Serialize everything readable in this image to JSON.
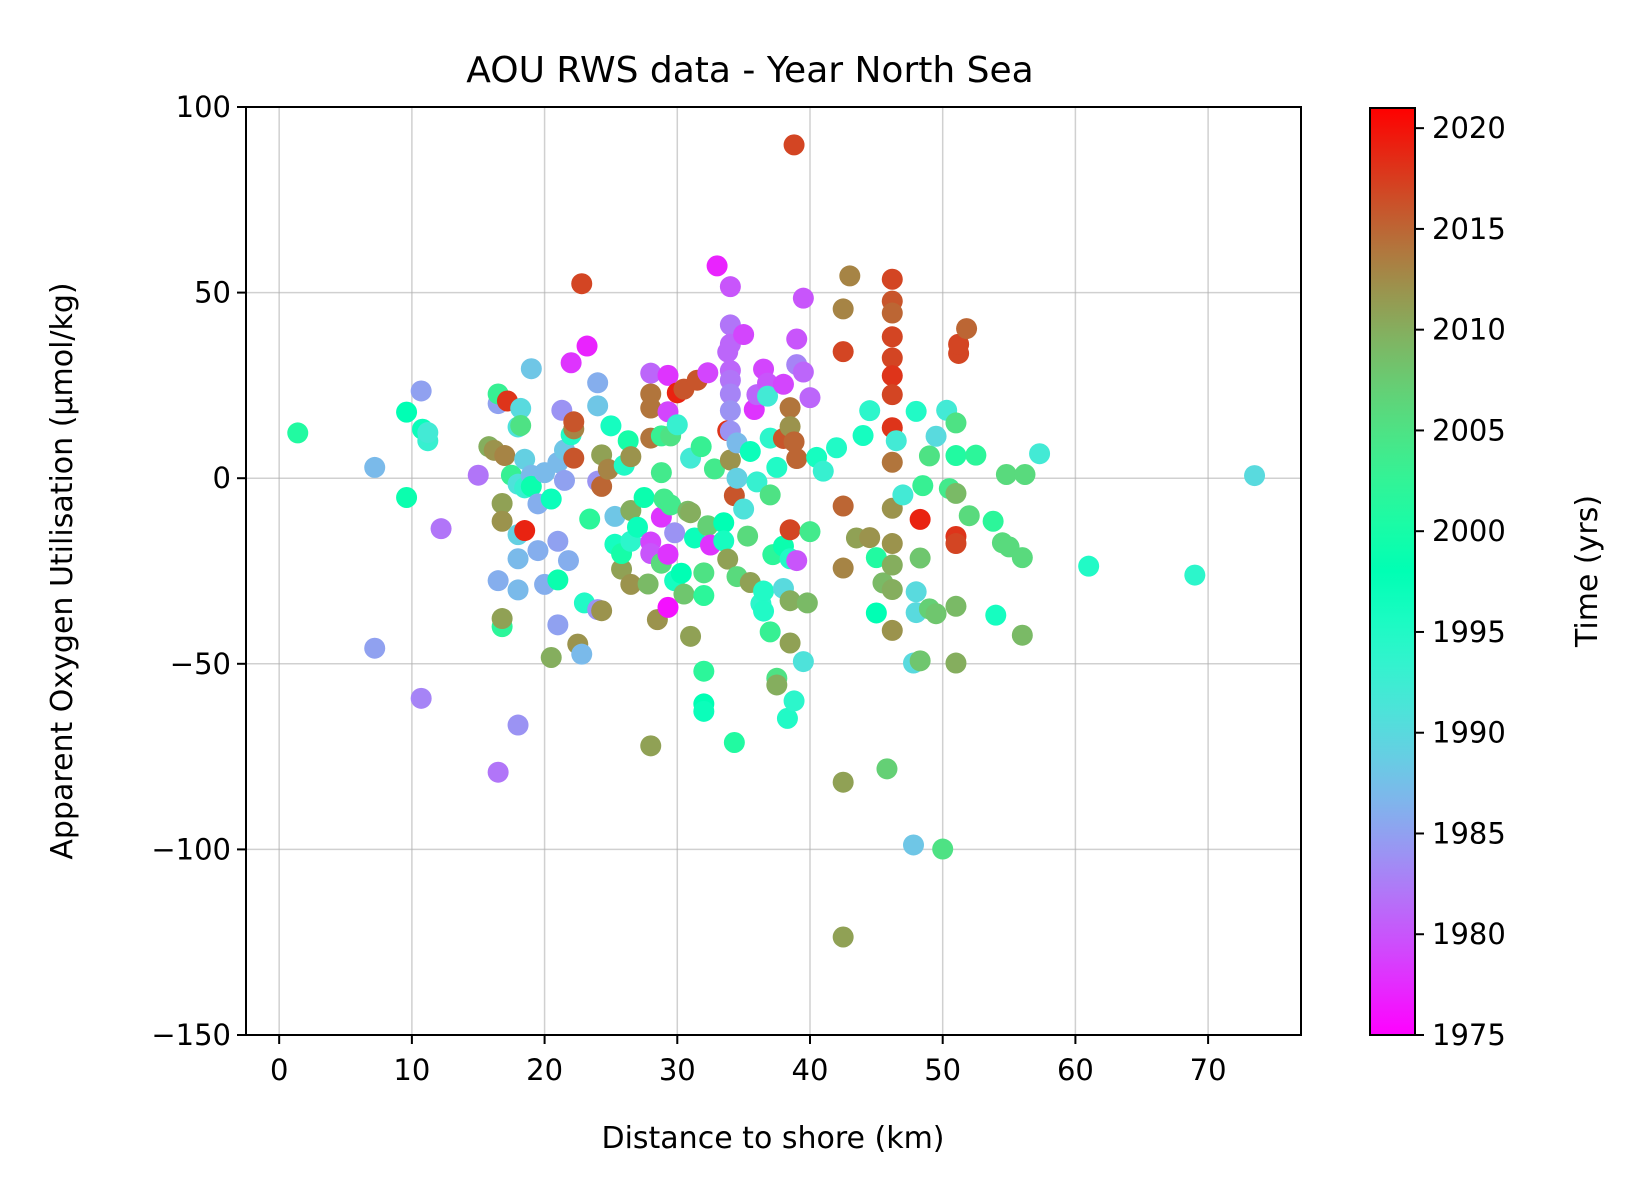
{
  "chart_data": {
    "type": "scatter",
    "title": "AOU RWS data - Year North Sea",
    "xlabel": "Distance to shore (km)",
    "ylabel": "Apparent Oxygen Utilisation (µmol/kg)",
    "xlim": [
      -2.5,
      77
    ],
    "ylim": [
      -150,
      100
    ],
    "xticks": [
      0,
      10,
      20,
      30,
      40,
      50,
      60,
      70
    ],
    "yticks": [
      -150,
      -100,
      -50,
      0,
      50,
      100
    ],
    "xtick_labels": [
      "0",
      "10",
      "20",
      "30",
      "40",
      "50",
      "60",
      "70"
    ],
    "ytick_labels": [
      "−150",
      "−100",
      "−50",
      "0",
      "50",
      "100"
    ],
    "grid": true,
    "colorbar": {
      "label": "Time (yrs)",
      "colormap": "rainbow",
      "range": [
        1975,
        2021
      ],
      "ticks": [
        1975,
        1980,
        1985,
        1990,
        1995,
        2000,
        2005,
        2010,
        2015,
        2020
      ],
      "tick_labels": [
        "1975",
        "1980",
        "1985",
        "1990",
        "1995",
        "2000",
        "2005",
        "2010",
        "2015",
        "2020"
      ]
    },
    "points": [
      [
        1.4,
        12.2,
        2001
      ],
      [
        7.2,
        2.9,
        1987
      ],
      [
        7.2,
        -45.8,
        1985
      ],
      [
        9.6,
        17.8,
        1998
      ],
      [
        9.6,
        -5.2,
        1999
      ],
      [
        10.8,
        13.2,
        1997
      ],
      [
        11.2,
        10.1,
        1993
      ],
      [
        11.2,
        12.3,
        1992
      ],
      [
        10.7,
        23.5,
        1985
      ],
      [
        10.7,
        -59.3,
        1983
      ],
      [
        12.2,
        -13.6,
        1982
      ],
      [
        15,
        0.8,
        1982
      ],
      [
        15.8,
        8.5,
        2010
      ],
      [
        16.2,
        7.5,
        2012
      ],
      [
        16.5,
        -27.6,
        1986
      ],
      [
        16.5,
        20.1,
        1985
      ],
      [
        16.5,
        22.7,
        2003
      ],
      [
        16.5,
        -79.2,
        1982
      ],
      [
        16.8,
        -6.8,
        2011
      ],
      [
        16.8,
        -11.6,
        2012
      ],
      [
        16.8,
        -40,
        2002
      ],
      [
        16.8,
        -37.8,
        2011
      ],
      [
        17,
        6.1,
        2013
      ],
      [
        17.2,
        20.8,
        2018
      ],
      [
        17.5,
        0.8,
        2003
      ],
      [
        18,
        13.8,
        1991
      ],
      [
        18,
        -1.6,
        1991
      ],
      [
        18,
        -15.2,
        1989
      ],
      [
        18,
        -21.7,
        1987
      ],
      [
        18,
        -30.1,
        1987
      ],
      [
        18,
        -66.5,
        1984
      ],
      [
        18.2,
        18.8,
        1990
      ],
      [
        18.2,
        14.2,
        2005
      ],
      [
        18.5,
        5.1,
        1989
      ],
      [
        18.5,
        -2.6,
        1993
      ],
      [
        18.5,
        -14.1,
        2019
      ],
      [
        19,
        29.5,
        1988
      ],
      [
        19,
        0.8,
        1987
      ],
      [
        19,
        -2.2,
        1999
      ],
      [
        19.5,
        -6.9,
        1986
      ],
      [
        19.5,
        -19.5,
        1986
      ],
      [
        20,
        1.5,
        1987
      ],
      [
        20,
        -28.6,
        1986
      ],
      [
        20.5,
        -5.6,
        1997
      ],
      [
        20.5,
        -48.3,
        2010
      ],
      [
        21,
        4.2,
        1987
      ],
      [
        21,
        -17,
        1985
      ],
      [
        21,
        -27.4,
        1999
      ],
      [
        21,
        -39.5,
        1985
      ],
      [
        21.3,
        18.3,
        1984
      ],
      [
        21.5,
        -0.6,
        1985
      ],
      [
        21.5,
        7.6,
        1988
      ],
      [
        21.8,
        -22.2,
        1986
      ],
      [
        22,
        11.7,
        1995
      ],
      [
        22,
        31.1,
        1978
      ],
      [
        22.2,
        13.3,
        2013
      ],
      [
        22.2,
        15.2,
        2016
      ],
      [
        22.2,
        5.4,
        2016
      ],
      [
        22.5,
        -44.7,
        2012
      ],
      [
        22.8,
        52.4,
        2017
      ],
      [
        22.8,
        -47.4,
        1987
      ],
      [
        23,
        -33.6,
        1995
      ],
      [
        23.2,
        35.6,
        1977
      ],
      [
        23.4,
        -11,
        2002
      ],
      [
        24,
        -0.8,
        1984
      ],
      [
        24,
        19.5,
        1988
      ],
      [
        24,
        25.7,
        1986
      ],
      [
        24,
        -35.4,
        1984
      ],
      [
        24.3,
        -2.2,
        2015
      ],
      [
        24.3,
        -35.7,
        2012
      ],
      [
        24.3,
        6.3,
        2011
      ],
      [
        24.8,
        2.4,
        2013
      ],
      [
        25,
        14.1,
        1996
      ],
      [
        25.3,
        -10.3,
        1988
      ],
      [
        25.3,
        -17.8,
        1996
      ],
      [
        25.8,
        -24.5,
        2011
      ],
      [
        25.8,
        -20.3,
        2000
      ],
      [
        26,
        3.5,
        1995
      ],
      [
        26.3,
        10.1,
        2000
      ],
      [
        26.5,
        -17,
        1994
      ],
      [
        26.5,
        -8.7,
        2010
      ],
      [
        26.5,
        5.8,
        2012
      ],
      [
        26.5,
        -28.6,
        2012
      ],
      [
        27,
        -13.2,
        1997
      ],
      [
        27.5,
        -5.2,
        1999
      ],
      [
        27.8,
        -28.5,
        2009
      ],
      [
        28,
        28.3,
        1981
      ],
      [
        28,
        22.7,
        2014
      ],
      [
        28,
        18.9,
        2014
      ],
      [
        28,
        10.8,
        2014
      ],
      [
        28,
        -17.2,
        1979
      ],
      [
        28,
        -20.3,
        1980
      ],
      [
        28,
        -72.1,
        2011
      ],
      [
        28.5,
        -38.1,
        2012
      ],
      [
        28.8,
        11.4,
        2003
      ],
      [
        28.8,
        1.5,
        2004
      ],
      [
        28.8,
        -10.5,
        1978
      ],
      [
        28.8,
        -22.9,
        2006
      ],
      [
        29,
        -5.6,
        2004
      ],
      [
        29.3,
        27.7,
        1978
      ],
      [
        29.3,
        17.9,
        1979
      ],
      [
        29.3,
        -20.5,
        1978
      ],
      [
        29.3,
        -34.8,
        1976
      ],
      [
        29.5,
        -7.2,
        2004
      ],
      [
        29.5,
        11.4,
        2005
      ],
      [
        29.8,
        -27.6,
        1996
      ],
      [
        29.8,
        -14.7,
        1984
      ],
      [
        30,
        23,
        2019
      ],
      [
        30,
        14.4,
        1993
      ],
      [
        30.3,
        -25.6,
        1998
      ],
      [
        30.5,
        -31.2,
        2008
      ],
      [
        30.5,
        24,
        2016
      ],
      [
        30.8,
        -8.9,
        2009
      ],
      [
        31,
        -9.3,
        2010
      ],
      [
        31,
        -42.6,
        2011
      ],
      [
        31,
        5.4,
        1992
      ],
      [
        31.3,
        -16.1,
        1997
      ],
      [
        31.5,
        26.4,
        2016
      ],
      [
        31.8,
        8.5,
        2003
      ],
      [
        32,
        -25.5,
        2005
      ],
      [
        32,
        -31.6,
        2002
      ],
      [
        32,
        -52,
        2002
      ],
      [
        32,
        -60.8,
        1998
      ],
      [
        32,
        -62.8,
        1997
      ],
      [
        32.3,
        28.4,
        1979
      ],
      [
        32.3,
        -12.8,
        2007
      ],
      [
        32.5,
        -18,
        1978
      ],
      [
        32.8,
        2.5,
        2004
      ],
      [
        33,
        57.2,
        1977
      ],
      [
        33.5,
        -12,
        1998
      ],
      [
        33.5,
        -16.9,
        1996
      ],
      [
        33.8,
        12.8,
        2018
      ],
      [
        33.8,
        -21.8,
        2011
      ],
      [
        33.8,
        34,
        1981
      ],
      [
        34,
        51.6,
        1980
      ],
      [
        34,
        41.3,
        1982
      ],
      [
        34,
        36.1,
        1981
      ],
      [
        34,
        29,
        1981
      ],
      [
        34,
        26.4,
        1982
      ],
      [
        34,
        22.7,
        1983
      ],
      [
        34,
        18.2,
        1984
      ],
      [
        34,
        12.7,
        1984
      ],
      [
        34,
        4.9,
        2012
      ],
      [
        34.3,
        -4.7,
        2016
      ],
      [
        34.3,
        -71.2,
        2001
      ],
      [
        34.5,
        9.5,
        1987
      ],
      [
        34.5,
        0,
        1989
      ],
      [
        34.5,
        -26.5,
        2006
      ],
      [
        35,
        38.7,
        1979
      ],
      [
        35,
        -8.3,
        1991
      ],
      [
        35.3,
        -15.6,
        2006
      ],
      [
        35.5,
        -28.1,
        2011
      ],
      [
        35.5,
        7.2,
        1997
      ],
      [
        35.8,
        18.5,
        1978
      ],
      [
        36,
        22.5,
        1981
      ],
      [
        36,
        -1,
        1993
      ],
      [
        36.3,
        -33.8,
        1994
      ],
      [
        36.5,
        29.4,
        1979
      ],
      [
        36.5,
        -30.4,
        1995
      ],
      [
        36.5,
        -35.8,
        1995
      ],
      [
        36.8,
        25.6,
        1980
      ],
      [
        36.8,
        22.1,
        1992
      ],
      [
        37,
        10.8,
        1994
      ],
      [
        37,
        -4.5,
        2005
      ],
      [
        37,
        -41.4,
        2003
      ],
      [
        37.2,
        -20.6,
        2002
      ],
      [
        37.5,
        -53.9,
        2005
      ],
      [
        37.5,
        -55.7,
        2010
      ],
      [
        37.5,
        2.9,
        1995
      ],
      [
        38,
        25.3,
        1979
      ],
      [
        38,
        10.7,
        2016
      ],
      [
        38,
        -18.3,
        1999
      ],
      [
        38,
        -29.7,
        1990
      ],
      [
        38.3,
        -64.7,
        1995
      ],
      [
        38.5,
        19,
        2014
      ],
      [
        38.5,
        13.9,
        2012
      ],
      [
        38.5,
        -13.9,
        2017
      ],
      [
        38.5,
        -21.7,
        1995
      ],
      [
        38.5,
        -33,
        2010
      ],
      [
        38.5,
        -44.4,
        2011
      ],
      [
        38.8,
        -60,
        1994
      ],
      [
        38.8,
        9.8,
        2015
      ],
      [
        38.8,
        89.8,
        2017
      ],
      [
        39,
        37.5,
        1980
      ],
      [
        39,
        30.6,
        1983
      ],
      [
        39,
        5.3,
        2015
      ],
      [
        39,
        -22.2,
        1980
      ],
      [
        39.5,
        48.5,
        1980
      ],
      [
        39.5,
        28.6,
        1981
      ],
      [
        39.5,
        -49.4,
        1991
      ],
      [
        39.8,
        -33.6,
        2009
      ],
      [
        40,
        21.7,
        1981
      ],
      [
        40,
        -14.4,
        2004
      ],
      [
        40.5,
        5.6,
        1996
      ],
      [
        41,
        1.9,
        1993
      ],
      [
        42,
        8.2,
        1995
      ],
      [
        42.5,
        34.1,
        2017
      ],
      [
        42.5,
        45.6,
        2013
      ],
      [
        42.5,
        -7.5,
        2015
      ],
      [
        42.5,
        -24.2,
        2013
      ],
      [
        42.5,
        -81.9,
        2011
      ],
      [
        42.5,
        -123.6,
        2011
      ],
      [
        43,
        54.5,
        2013
      ],
      [
        43.5,
        -16.1,
        2011
      ],
      [
        44,
        11.5,
        1996
      ],
      [
        44.5,
        18.2,
        1994
      ],
      [
        44.5,
        -16,
        2012
      ],
      [
        45,
        -21.4,
        2001
      ],
      [
        45,
        -36.3,
        1998
      ],
      [
        45.5,
        -28.2,
        2009
      ],
      [
        45.8,
        -78.3,
        2007
      ],
      [
        46.2,
        53.6,
        2017
      ],
      [
        46.2,
        47.7,
        2016
      ],
      [
        46.2,
        44.5,
        2015
      ],
      [
        46.2,
        38.1,
        2017
      ],
      [
        46.2,
        32.4,
        2017
      ],
      [
        46.2,
        27.6,
        2018
      ],
      [
        46.2,
        22.5,
        2017
      ],
      [
        46.2,
        13.6,
        2018
      ],
      [
        46.2,
        4.3,
        2014
      ],
      [
        46.2,
        -8.1,
        2012
      ],
      [
        46.2,
        -17.6,
        2012
      ],
      [
        46.2,
        -23.4,
        2010
      ],
      [
        46.2,
        -30,
        2010
      ],
      [
        46.2,
        -41,
        2012
      ],
      [
        46.5,
        10.1,
        1992
      ],
      [
        47,
        -4.5,
        1992
      ],
      [
        47.8,
        -49.8,
        1990
      ],
      [
        47.8,
        -98.8,
        1988
      ],
      [
        48,
        18,
        1995
      ],
      [
        48,
        -30.6,
        1990
      ],
      [
        48,
        -36.2,
        1990
      ],
      [
        48.3,
        -11.1,
        2019
      ],
      [
        48.3,
        -21.5,
        2008
      ],
      [
        48.3,
        -49.2,
        2008
      ],
      [
        48.5,
        -2,
        2003
      ],
      [
        49,
        6,
        2005
      ],
      [
        49,
        -35.2,
        2007
      ],
      [
        49.5,
        -36.5,
        2008
      ],
      [
        49.5,
        11.3,
        1990
      ],
      [
        50,
        -99.9,
        2005
      ],
      [
        50.3,
        18.3,
        1992
      ],
      [
        50.5,
        -2.8,
        2004
      ],
      [
        51,
        14.9,
        2005
      ],
      [
        51,
        6.1,
        2001
      ],
      [
        51,
        -4.1,
        2009
      ],
      [
        51,
        -15.7,
        2018
      ],
      [
        51,
        -17.6,
        2017
      ],
      [
        51,
        -34.5,
        2009
      ],
      [
        51,
        -49.8,
        2010
      ],
      [
        51.2,
        33.6,
        2017
      ],
      [
        51.2,
        36.1,
        2017
      ],
      [
        51.8,
        40.3,
        2015
      ],
      [
        52,
        -10.1,
        2006
      ],
      [
        52.5,
        6.2,
        2002
      ],
      [
        53.8,
        -11.6,
        2002
      ],
      [
        54,
        -36.9,
        1996
      ],
      [
        54.5,
        -17.4,
        2006
      ],
      [
        54.8,
        1,
        2006
      ],
      [
        55,
        -18.5,
        2006
      ],
      [
        56,
        -21.4,
        2006
      ],
      [
        56,
        -42.3,
        2009
      ],
      [
        56.2,
        1,
        2006
      ],
      [
        57.3,
        6.6,
        1992
      ],
      [
        61,
        -23.7,
        1995
      ],
      [
        69,
        -26.1,
        1994
      ],
      [
        73.5,
        0.7,
        1990
      ]
    ]
  }
}
